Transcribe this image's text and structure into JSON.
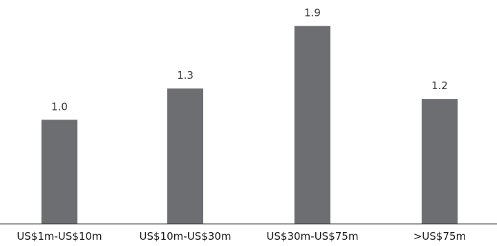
{
  "chart_data": {
    "type": "bar",
    "categories": [
      "US$1m-US$10m",
      "US$10m-US$30m",
      "US$30m-US$75m",
      ">US$75m"
    ],
    "values": [
      1.0,
      1.3,
      1.9,
      1.2
    ],
    "data_labels": [
      "1.0",
      "1.3",
      "1.9",
      "1.2"
    ],
    "title": "",
    "xlabel": "",
    "ylabel": "",
    "ylim": [
      0,
      2.15
    ],
    "grid": false,
    "legend": "none",
    "bar_color": "#6d6e71",
    "axis_color": "#333333"
  }
}
